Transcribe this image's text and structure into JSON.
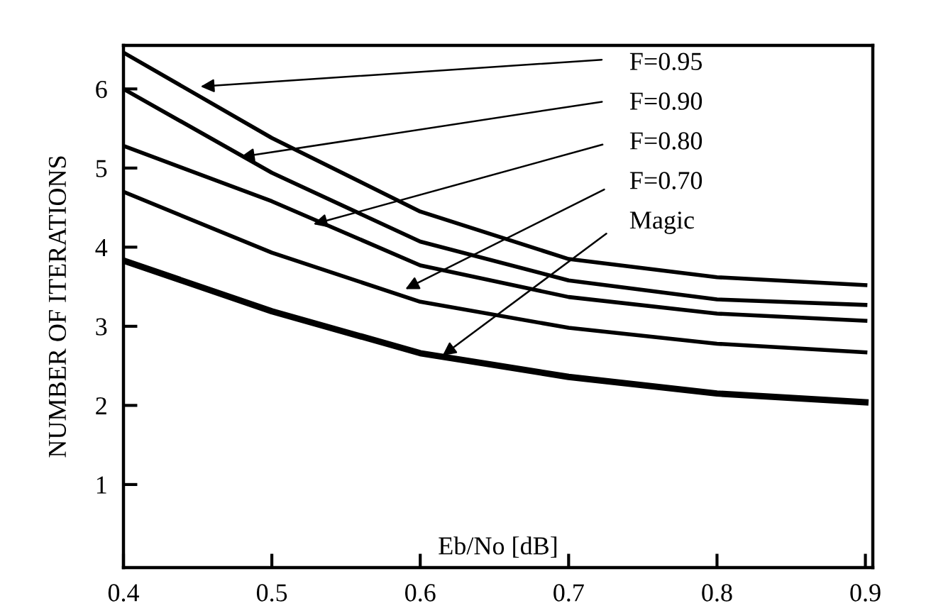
{
  "chart_data": {
    "type": "line",
    "xlabel": "Eb/No [dB]",
    "ylabel": "NUMBER OF ITERATIONS",
    "x": [
      0.4,
      0.5,
      0.6,
      0.7,
      0.8,
      0.9
    ],
    "series": [
      {
        "color": "#000000",
        "values": [
          6.46,
          5.38,
          4.45,
          3.85,
          3.62,
          3.52
        ]
      },
      {
        "color": "#000000",
        "values": [
          6.0,
          4.94,
          4.07,
          3.58,
          3.34,
          3.27
        ]
      },
      {
        "color": "#000000",
        "values": [
          5.28,
          4.58,
          3.77,
          3.37,
          3.16,
          3.07
        ]
      },
      {
        "color": "#000000",
        "values": [
          4.7,
          3.93,
          3.31,
          2.98,
          2.78,
          2.67
        ]
      },
      {
        "color": "#000000",
        "values": [
          3.83,
          3.19,
          2.66,
          2.36,
          2.15,
          2.04
        ]
      }
    ],
    "annotations": [
      {
        "text": "F=0.95",
        "x": 0.452,
        "y": 6.03
      },
      {
        "text": "F=0.90",
        "x": 0.479,
        "y": 5.14
      },
      {
        "text": "F=0.80",
        "x": 0.528,
        "y": 4.29
      },
      {
        "text": "F=0.70",
        "x": 0.59,
        "y": 3.47
      },
      {
        "text": "Magic",
        "x": 0.615,
        "y": 2.63
      }
    ],
    "xlim": [
      0.4,
      0.905
    ],
    "ylim": [
      -0.05,
      6.55
    ],
    "xticks": [
      0.4,
      0.5,
      0.6,
      0.7,
      0.8,
      0.9
    ],
    "yticks": [
      1,
      2,
      3,
      4,
      5,
      6
    ],
    "grid": false,
    "legend": false,
    "marker": "none",
    "line_style": "solid"
  }
}
